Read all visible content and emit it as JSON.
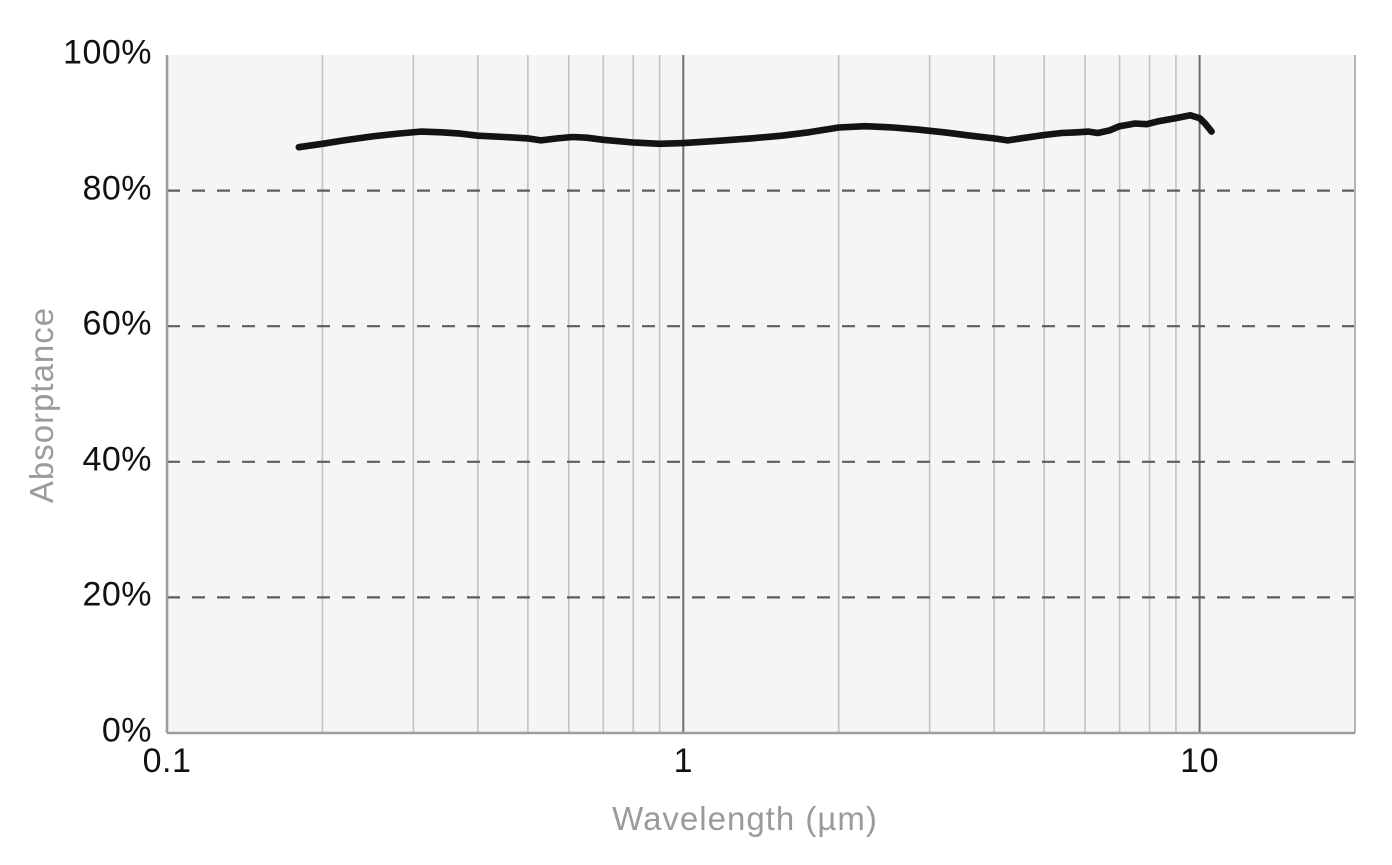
{
  "colors": {
    "page_background": "#ffffff",
    "plot_background": "#f5f5f5",
    "minor_gridline": "#c3c3c3",
    "decade_gridline": "#6f6f6f",
    "axis_line": "#9d9d9d",
    "right_border": "#b5b5b5",
    "dashed_gridline": "#5d5d5d",
    "series_line": "#131313",
    "tick_label": "#111111",
    "axis_title": "#9b9b9b"
  },
  "chart_data": {
    "type": "line",
    "title": "",
    "xlabel": "Wavelength (µm)",
    "ylabel": "Absorptance",
    "x_scale": "log",
    "x_range": [
      0.1,
      20
    ],
    "y_range": [
      0,
      100
    ],
    "grid": "on",
    "legend": "none",
    "x_ticks": [
      {
        "value": 0.1,
        "label": "0.1"
      },
      {
        "value": 1,
        "label": "1"
      },
      {
        "value": 10,
        "label": "10"
      }
    ],
    "y_ticks": [
      {
        "value": 100,
        "label": "100%"
      },
      {
        "value": 80,
        "label": "80%"
      },
      {
        "value": 60,
        "label": "60%"
      },
      {
        "value": 40,
        "label": "40%"
      },
      {
        "value": 20,
        "label": "20%"
      },
      {
        "value": 0,
        "label": "0%"
      }
    ],
    "minor_gridlines_x": [
      0.2,
      0.3,
      0.4,
      0.5,
      0.6,
      0.7,
      0.8,
      0.9,
      2,
      3,
      4,
      5,
      6,
      7,
      8,
      9
    ],
    "decade_gridlines_x": [
      1,
      10
    ],
    "dashed_gridlines_y": [
      20,
      40,
      60,
      80
    ],
    "series": [
      {
        "name": "absorptance",
        "unit": "%",
        "points": [
          [
            0.18,
            86.4
          ],
          [
            0.2,
            86.9
          ],
          [
            0.22,
            87.4
          ],
          [
            0.25,
            88.0
          ],
          [
            0.28,
            88.4
          ],
          [
            0.31,
            88.7
          ],
          [
            0.34,
            88.6
          ],
          [
            0.37,
            88.4
          ],
          [
            0.4,
            88.1
          ],
          [
            0.45,
            87.9
          ],
          [
            0.5,
            87.7
          ],
          [
            0.53,
            87.4
          ],
          [
            0.57,
            87.7
          ],
          [
            0.61,
            87.9
          ],
          [
            0.65,
            87.8
          ],
          [
            0.7,
            87.5
          ],
          [
            0.8,
            87.1
          ],
          [
            0.9,
            86.9
          ],
          [
            1.0,
            87.0
          ],
          [
            1.15,
            87.3
          ],
          [
            1.35,
            87.7
          ],
          [
            1.55,
            88.1
          ],
          [
            1.75,
            88.6
          ],
          [
            2.0,
            89.3
          ],
          [
            2.25,
            89.5
          ],
          [
            2.55,
            89.3
          ],
          [
            2.85,
            89.0
          ],
          [
            3.2,
            88.6
          ],
          [
            3.6,
            88.1
          ],
          [
            4.0,
            87.7
          ],
          [
            4.25,
            87.4
          ],
          [
            4.6,
            87.8
          ],
          [
            5.0,
            88.2
          ],
          [
            5.4,
            88.5
          ],
          [
            5.8,
            88.6
          ],
          [
            6.1,
            88.7
          ],
          [
            6.35,
            88.5
          ],
          [
            6.7,
            88.9
          ],
          [
            7.0,
            89.5
          ],
          [
            7.5,
            89.9
          ],
          [
            7.9,
            89.8
          ],
          [
            8.3,
            90.2
          ],
          [
            9.0,
            90.7
          ],
          [
            9.6,
            91.1
          ],
          [
            10.0,
            90.7
          ],
          [
            10.25,
            89.9
          ],
          [
            10.55,
            88.7
          ]
        ]
      }
    ]
  }
}
